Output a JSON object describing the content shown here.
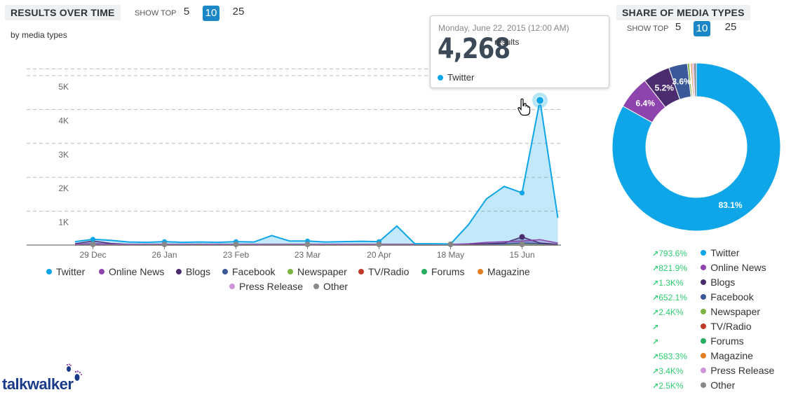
{
  "header": {
    "title": "RESULTS OVER TIME",
    "show_top_label": "SHOW TOP",
    "show_top_options": [
      "5",
      "10",
      "25"
    ],
    "show_top_selected": "10",
    "subtitle": "by media types"
  },
  "share": {
    "title": "SHARE OF MEDIA TYPES",
    "show_top_label": "SHOW TOP",
    "show_top_options": [
      "5",
      "10",
      "25"
    ],
    "show_top_selected": "10"
  },
  "tooltip": {
    "date": "Monday, June 22, 2015 (12:00 AM)",
    "value": "4,268",
    "unit": "results",
    "series": "Twitter"
  },
  "brand": {
    "logo_text": "talkwalker"
  },
  "colors": {
    "Twitter": "#0ea5e9",
    "Online News": "#8e44ad",
    "Blogs": "#4b2c6e",
    "Facebook": "#3b5998",
    "Newspaper": "#7cb342",
    "TV/Radio": "#c0392b",
    "Forums": "#27ae60",
    "Magazine": "#e67e22",
    "Press Release": "#ce93d8",
    "Other": "#888888"
  },
  "chart_data": [
    {
      "type": "area",
      "title": "RESULTS OVER TIME",
      "subtitle": "by media types",
      "x_tick_labels": [
        "29 Dec",
        "26 Jan",
        "23 Feb",
        "23 Mar",
        "20 Apr",
        "18 May",
        "15 Jun"
      ],
      "y_tick_labels": [
        "1K",
        "2K",
        "3K",
        "4K",
        "5K"
      ],
      "ylim": [
        0,
        5000
      ],
      "grid": true,
      "legend_position": "bottom",
      "x": [
        "2014-12-22",
        "2014-12-29",
        "2015-01-05",
        "2015-01-12",
        "2015-01-19",
        "2015-01-26",
        "2015-02-02",
        "2015-02-09",
        "2015-02-16",
        "2015-02-23",
        "2015-03-02",
        "2015-03-09",
        "2015-03-16",
        "2015-03-23",
        "2015-03-30",
        "2015-04-06",
        "2015-04-13",
        "2015-04-20",
        "2015-04-27",
        "2015-05-04",
        "2015-05-11",
        "2015-05-18",
        "2015-05-25",
        "2015-06-01",
        "2015-06-08",
        "2015-06-15",
        "2015-06-22",
        "2015-06-29"
      ],
      "series": [
        {
          "name": "Twitter",
          "values": [
            100,
            170,
            140,
            90,
            80,
            100,
            80,
            90,
            80,
            100,
            90,
            280,
            120,
            120,
            90,
            100,
            110,
            100,
            560,
            40,
            40,
            30,
            600,
            1360,
            1730,
            1540,
            4268,
            800
          ]
        },
        {
          "name": "Online News",
          "values": [
            20,
            40,
            30,
            20,
            20,
            20,
            20,
            20,
            20,
            20,
            20,
            20,
            20,
            20,
            20,
            20,
            20,
            20,
            20,
            20,
            20,
            20,
            40,
            80,
            100,
            120,
            160,
            60
          ]
        },
        {
          "name": "Blogs",
          "values": [
            40,
            120,
            50,
            20,
            20,
            20,
            20,
            20,
            20,
            20,
            20,
            20,
            20,
            20,
            20,
            20,
            20,
            20,
            20,
            20,
            20,
            20,
            20,
            40,
            60,
            240,
            60,
            20
          ]
        },
        {
          "name": "Facebook",
          "values": [
            10,
            20,
            15,
            10,
            10,
            10,
            10,
            10,
            10,
            10,
            10,
            10,
            10,
            10,
            10,
            10,
            10,
            10,
            10,
            10,
            10,
            10,
            10,
            20,
            30,
            60,
            40,
            10
          ]
        },
        {
          "name": "Newspaper",
          "values": [
            5,
            5,
            5,
            5,
            5,
            5,
            5,
            5,
            5,
            5,
            5,
            5,
            5,
            5,
            5,
            5,
            5,
            5,
            5,
            5,
            5,
            5,
            5,
            5,
            10,
            10,
            10,
            5
          ]
        },
        {
          "name": "TV/Radio",
          "values": [
            0,
            0,
            0,
            0,
            0,
            0,
            0,
            0,
            0,
            0,
            0,
            0,
            0,
            0,
            0,
            0,
            0,
            0,
            0,
            0,
            0,
            0,
            0,
            0,
            0,
            0,
            0,
            0
          ]
        },
        {
          "name": "Forums",
          "values": [
            0,
            0,
            0,
            0,
            0,
            0,
            0,
            0,
            0,
            0,
            0,
            0,
            0,
            0,
            0,
            0,
            0,
            0,
            0,
            0,
            0,
            0,
            0,
            0,
            0,
            0,
            0,
            0
          ]
        },
        {
          "name": "Magazine",
          "values": [
            2,
            2,
            2,
            2,
            2,
            2,
            2,
            2,
            2,
            2,
            2,
            2,
            2,
            2,
            2,
            2,
            2,
            2,
            2,
            2,
            2,
            2,
            2,
            2,
            3,
            3,
            3,
            2
          ]
        },
        {
          "name": "Press Release",
          "values": [
            2,
            2,
            2,
            2,
            2,
            2,
            2,
            2,
            2,
            2,
            2,
            2,
            2,
            2,
            2,
            2,
            2,
            2,
            2,
            2,
            2,
            2,
            2,
            2,
            3,
            3,
            3,
            2
          ]
        },
        {
          "name": "Other",
          "values": [
            10,
            15,
            10,
            10,
            10,
            10,
            10,
            10,
            10,
            10,
            10,
            10,
            10,
            10,
            10,
            10,
            10,
            10,
            10,
            10,
            10,
            10,
            10,
            20,
            30,
            40,
            30,
            10
          ]
        }
      ],
      "highlight": {
        "series": "Twitter",
        "x": "2015-06-22",
        "value": 4268
      }
    },
    {
      "type": "pie",
      "title": "SHARE OF MEDIA TYPES",
      "donut": true,
      "slices": [
        {
          "name": "Twitter",
          "value": 83.1,
          "label": "83.1%"
        },
        {
          "name": "Online News",
          "value": 6.4,
          "label": "6.4%"
        },
        {
          "name": "Blogs",
          "value": 5.2,
          "label": "5.2%"
        },
        {
          "name": "Facebook",
          "value": 3.6,
          "label": "3.6%"
        },
        {
          "name": "Newspaper",
          "value": 0.4,
          "label": ""
        },
        {
          "name": "TV/Radio",
          "value": 0.1,
          "label": ""
        },
        {
          "name": "Forums",
          "value": 0.1,
          "label": ""
        },
        {
          "name": "Magazine",
          "value": 0.3,
          "label": ""
        },
        {
          "name": "Press Release",
          "value": 0.3,
          "label": ""
        },
        {
          "name": "Other",
          "value": 0.5,
          "label": ""
        }
      ],
      "changes": [
        {
          "name": "Twitter",
          "change": "793.6%"
        },
        {
          "name": "Online News",
          "change": "821.9%"
        },
        {
          "name": "Blogs",
          "change": "1.3K%"
        },
        {
          "name": "Facebook",
          "change": "652.1%"
        },
        {
          "name": "Newspaper",
          "change": "2.4K%"
        },
        {
          "name": "TV/Radio",
          "change": ""
        },
        {
          "name": "Forums",
          "change": ""
        },
        {
          "name": "Magazine",
          "change": "583.3%"
        },
        {
          "name": "Press Release",
          "change": "3.4K%"
        },
        {
          "name": "Other",
          "change": "2.5K%"
        }
      ]
    }
  ]
}
